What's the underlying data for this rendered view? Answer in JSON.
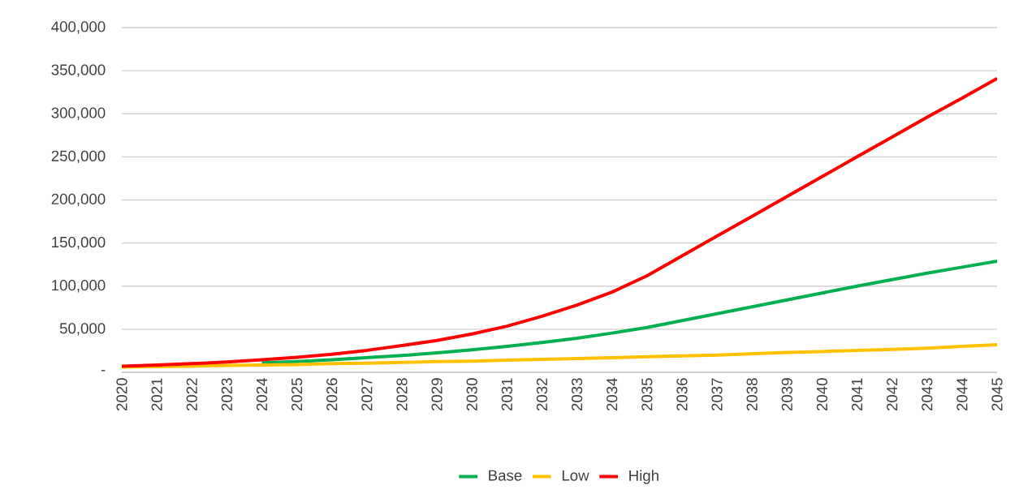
{
  "chart_data": {
    "type": "line",
    "categories": [
      "2020",
      "2021",
      "2022",
      "2023",
      "2024",
      "2025",
      "2026",
      "2027",
      "2028",
      "2029",
      "2030",
      "2031",
      "2032",
      "2033",
      "2034",
      "2035",
      "2036",
      "2037",
      "2038",
      "2039",
      "2040",
      "2041",
      "2042",
      "2043",
      "2044",
      "2045"
    ],
    "series": [
      {
        "name": "Base",
        "color": "#00b050",
        "values": [
          null,
          null,
          null,
          null,
          11000,
          12500,
          14500,
          17000,
          19500,
          22500,
          26000,
          30000,
          34500,
          39500,
          45500,
          52000,
          60000,
          68000,
          76000,
          84000,
          92000,
          100000,
          107500,
          115000,
          122000,
          129000
        ]
      },
      {
        "name": "Low",
        "color": "#ffc000",
        "values": [
          6000,
          6500,
          7000,
          8000,
          8500,
          9000,
          10000,
          10500,
          11500,
          12500,
          13000,
          14000,
          15000,
          16000,
          17000,
          18000,
          19000,
          20000,
          21500,
          23000,
          24000,
          25500,
          26500,
          28000,
          30000,
          32000
        ]
      },
      {
        "name": "High",
        "color": "#ff0000",
        "values": [
          7000,
          8500,
          10000,
          12000,
          14500,
          17500,
          21000,
          25500,
          31000,
          37000,
          44500,
          53500,
          65000,
          78000,
          93000,
          112000,
          135000,
          158000,
          181000,
          204000,
          227000,
          250000,
          273000,
          296000,
          318000,
          341000
        ]
      }
    ],
    "ylim": [
      0,
      400000
    ],
    "yticks": [
      {
        "value": 0,
        "label": "-"
      },
      {
        "value": 50000,
        "label": "50,000"
      },
      {
        "value": 100000,
        "label": "100,000"
      },
      {
        "value": 150000,
        "label": "150,000"
      },
      {
        "value": 200000,
        "label": "200,000"
      },
      {
        "value": 250000,
        "label": "250,000"
      },
      {
        "value": 300000,
        "label": "300,000"
      },
      {
        "value": 350000,
        "label": "350,000"
      },
      {
        "value": 400000,
        "label": "400,000"
      }
    ],
    "grid": "y",
    "legend": "bottom",
    "marker": "none",
    "line_style": "solid"
  }
}
